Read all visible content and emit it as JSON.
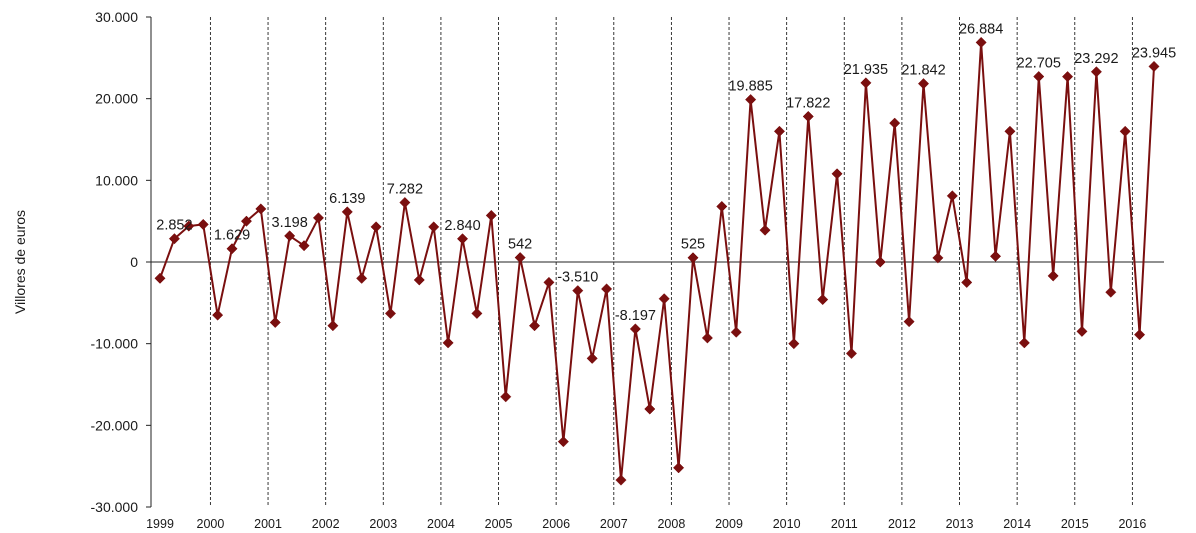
{
  "chart_data": {
    "type": "line",
    "ylabel": "Villores de euros",
    "ylim": [
      -30000,
      30000
    ],
    "y_ticks": [
      30000,
      20000,
      10000,
      0,
      -10000,
      -20000,
      -30000
    ],
    "y_tick_labels": [
      "30.000",
      "20.000",
      "10.000",
      "0",
      "-10.000",
      "-20.000",
      "-30.000"
    ],
    "year_labels": [
      "1999",
      "2000",
      "2001",
      "2002",
      "2003",
      "2004",
      "2005",
      "2006",
      "2007",
      "2008",
      "2009",
      "2010",
      "2011",
      "2012",
      "2013",
      "2014",
      "2015",
      "2016"
    ],
    "color": "#7a0f0f",
    "grid": "vertical dashed lines between years",
    "series": [
      {
        "values": [
          -2000,
          2852,
          4400,
          4600,
          -6500,
          1629,
          5000,
          6500,
          -7400,
          3198,
          2000,
          5400,
          -7800,
          6139,
          -2000,
          4300,
          -6300,
          7282,
          -2200,
          4300,
          -9900,
          2840,
          -6300,
          5700,
          -16500,
          542,
          -7800,
          -2500,
          -22000,
          -3510,
          -11800,
          -3300,
          -26700,
          -8197,
          -18000,
          -4500,
          -25200,
          525,
          -9300,
          6800,
          -8600,
          19885,
          3900,
          16000,
          -10000,
          17822,
          -4600,
          10800,
          -11200,
          21935,
          0,
          17000,
          -7300,
          21842,
          500,
          8100,
          -2500,
          26884,
          700,
          16000,
          -9900,
          22705,
          -1700,
          22700,
          -8500,
          23292,
          -3700,
          16000,
          -8900,
          23945
        ]
      }
    ],
    "data_labels": [
      {
        "index": 1,
        "text": "2.852"
      },
      {
        "index": 5,
        "text": "1.629"
      },
      {
        "index": 9,
        "text": "3.198"
      },
      {
        "index": 13,
        "text": "6.139"
      },
      {
        "index": 17,
        "text": "7.282"
      },
      {
        "index": 21,
        "text": "2.840"
      },
      {
        "index": 25,
        "text": "542"
      },
      {
        "index": 29,
        "text": "-3.510"
      },
      {
        "index": 33,
        "text": "-8.197"
      },
      {
        "index": 37,
        "text": "525"
      },
      {
        "index": 41,
        "text": "19.885"
      },
      {
        "index": 45,
        "text": "17.822"
      },
      {
        "index": 49,
        "text": "21.935"
      },
      {
        "index": 53,
        "text": "21.842"
      },
      {
        "index": 57,
        "text": "26.884"
      },
      {
        "index": 61,
        "text": "22.705"
      },
      {
        "index": 65,
        "text": "23.292"
      },
      {
        "index": 69,
        "text": "23.945"
      }
    ]
  }
}
